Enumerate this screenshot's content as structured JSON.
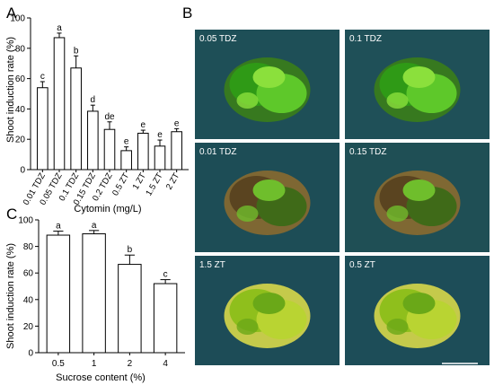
{
  "panel_labels": {
    "a": "A",
    "b": "B",
    "c": "C"
  },
  "chart_data": [
    {
      "type": "bar",
      "panel": "A",
      "ylabel": "Shoot induction rate (%)",
      "xlabel": "Cytomin (mg/L)",
      "ylim": [
        0,
        100
      ],
      "yticks": [
        0,
        20,
        40,
        60,
        80,
        100
      ],
      "categories": [
        "0.01 TDZ",
        "0.05 TDZ",
        "0.1 TDZ",
        "0.15 TDZ",
        "0.2 TDZ",
        "0.5 ZT",
        "1 ZT",
        "1.5 ZT",
        "2 ZT"
      ],
      "values": [
        54,
        87,
        67,
        38.5,
        26.5,
        12.5,
        24,
        15.5,
        25
      ],
      "errors": [
        4,
        3,
        8,
        4,
        5,
        2.5,
        2,
        4,
        2
      ],
      "letters": [
        "c",
        "a",
        "b",
        "d",
        "de",
        "e",
        "e",
        "e",
        "e"
      ]
    },
    {
      "type": "bar",
      "panel": "C",
      "ylabel": "Shoot induction rate (%)",
      "xlabel": "Sucrose content (%)",
      "ylim": [
        0,
        100
      ],
      "yticks": [
        0,
        20,
        40,
        60,
        80,
        100
      ],
      "categories": [
        "0.5",
        "1",
        "2",
        "4"
      ],
      "values": [
        88.5,
        89.5,
        66.5,
        52
      ],
      "errors": [
        3,
        2.5,
        7,
        3
      ],
      "letters": [
        "a",
        "a",
        "b",
        "c"
      ]
    }
  ],
  "photos": [
    {
      "label": "0.05 TDZ",
      "bg": "#1e4f57",
      "tone": "green"
    },
    {
      "label": "0.1 TDZ",
      "bg": "#1f5058",
      "tone": "green"
    },
    {
      "label": "0.01 TDZ",
      "bg": "#1d4d56",
      "tone": "brown"
    },
    {
      "label": "0.15 TDZ",
      "bg": "#1f4f55",
      "tone": "brown"
    },
    {
      "label": "1.5 ZT",
      "bg": "#1d4c57",
      "tone": "yellow"
    },
    {
      "label": "0.5 ZT",
      "bg": "#1d4d58",
      "tone": "yellow"
    }
  ]
}
